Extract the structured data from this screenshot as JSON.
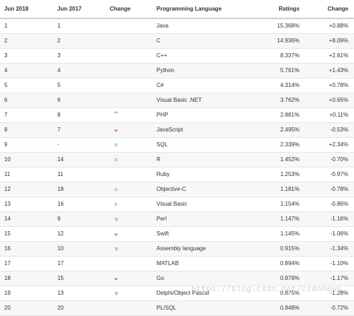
{
  "headers": {
    "rank2018": "Jun 2018",
    "rank2017": "Jun 2017",
    "change": "Change",
    "language": "Programming Language",
    "ratings": "Ratings",
    "delta": "Change"
  },
  "rows": [
    {
      "rank2018": "1",
      "rank2017": "1",
      "arrow": "",
      "language": "Java",
      "ratings": "15.368%",
      "delta": "+0.88%"
    },
    {
      "rank2018": "2",
      "rank2017": "2",
      "arrow": "",
      "language": "C",
      "ratings": "14.936%",
      "delta": "+8.09%"
    },
    {
      "rank2018": "3",
      "rank2017": "3",
      "arrow": "",
      "language": "C++",
      "ratings": "8.337%",
      "delta": "+2.61%"
    },
    {
      "rank2018": "4",
      "rank2017": "4",
      "arrow": "",
      "language": "Python",
      "ratings": "5.761%",
      "delta": "+1.43%"
    },
    {
      "rank2018": "5",
      "rank2017": "5",
      "arrow": "",
      "language": "C#",
      "ratings": "4.314%",
      "delta": "+0.78%"
    },
    {
      "rank2018": "6",
      "rank2017": "6",
      "arrow": "",
      "language": "Visual Basic .NET",
      "ratings": "3.762%",
      "delta": "+0.65%"
    },
    {
      "rank2018": "7",
      "rank2017": "8",
      "arrow": "up",
      "language": "PHP",
      "ratings": "2.881%",
      "delta": "+0.11%"
    },
    {
      "rank2018": "8",
      "rank2017": "7",
      "arrow": "down",
      "language": "JavaScript",
      "ratings": "2.495%",
      "delta": "-0.53%"
    },
    {
      "rank2018": "9",
      "rank2017": "-",
      "arrow": "double-up",
      "language": "SQL",
      "ratings": "2.339%",
      "delta": "+2.34%"
    },
    {
      "rank2018": "10",
      "rank2017": "14",
      "arrow": "double-up",
      "language": "R",
      "ratings": "1.452%",
      "delta": "-0.70%"
    },
    {
      "rank2018": "11",
      "rank2017": "11",
      "arrow": "",
      "language": "Ruby",
      "ratings": "1.253%",
      "delta": "-0.97%"
    },
    {
      "rank2018": "12",
      "rank2017": "18",
      "arrow": "double-up",
      "language": "Objective-C",
      "ratings": "1.181%",
      "delta": "-0.78%"
    },
    {
      "rank2018": "13",
      "rank2017": "16",
      "arrow": "double-up",
      "language": "Visual Basic",
      "ratings": "1.154%",
      "delta": "-0.86%"
    },
    {
      "rank2018": "14",
      "rank2017": "9",
      "arrow": "double-down",
      "language": "Perl",
      "ratings": "1.147%",
      "delta": "-1.16%"
    },
    {
      "rank2018": "15",
      "rank2017": "12",
      "arrow": "down",
      "language": "Swift",
      "ratings": "1.145%",
      "delta": "-1.06%"
    },
    {
      "rank2018": "16",
      "rank2017": "10",
      "arrow": "double-down",
      "language": "Assembly language",
      "ratings": "0.915%",
      "delta": "-1.34%"
    },
    {
      "rank2018": "17",
      "rank2017": "17",
      "arrow": "",
      "language": "MATLAB",
      "ratings": "0.894%",
      "delta": "-1.10%"
    },
    {
      "rank2018": "18",
      "rank2017": "15",
      "arrow": "down",
      "language": "Go",
      "ratings": "0.879%",
      "delta": "-1.17%"
    },
    {
      "rank2018": "19",
      "rank2017": "13",
      "arrow": "double-down",
      "language": "Delphi/Object Pascal",
      "ratings": "0.875%",
      "delta": "-1.28%"
    },
    {
      "rank2018": "20",
      "rank2017": "20",
      "arrow": "",
      "language": "PL/SQL",
      "ratings": "0.848%",
      "delta": "-0.72%"
    }
  ],
  "arrow_icons": {
    "up": "chevron-up-icon",
    "down": "chevron-down-icon",
    "double-up": "double-chevron-up-icon",
    "double-down": "double-chevron-down-icon"
  },
  "colors": {
    "up": "#5cb85c",
    "down": "#d9534f"
  },
  "watermark": "https://blog.csdn.net/csdnnews"
}
